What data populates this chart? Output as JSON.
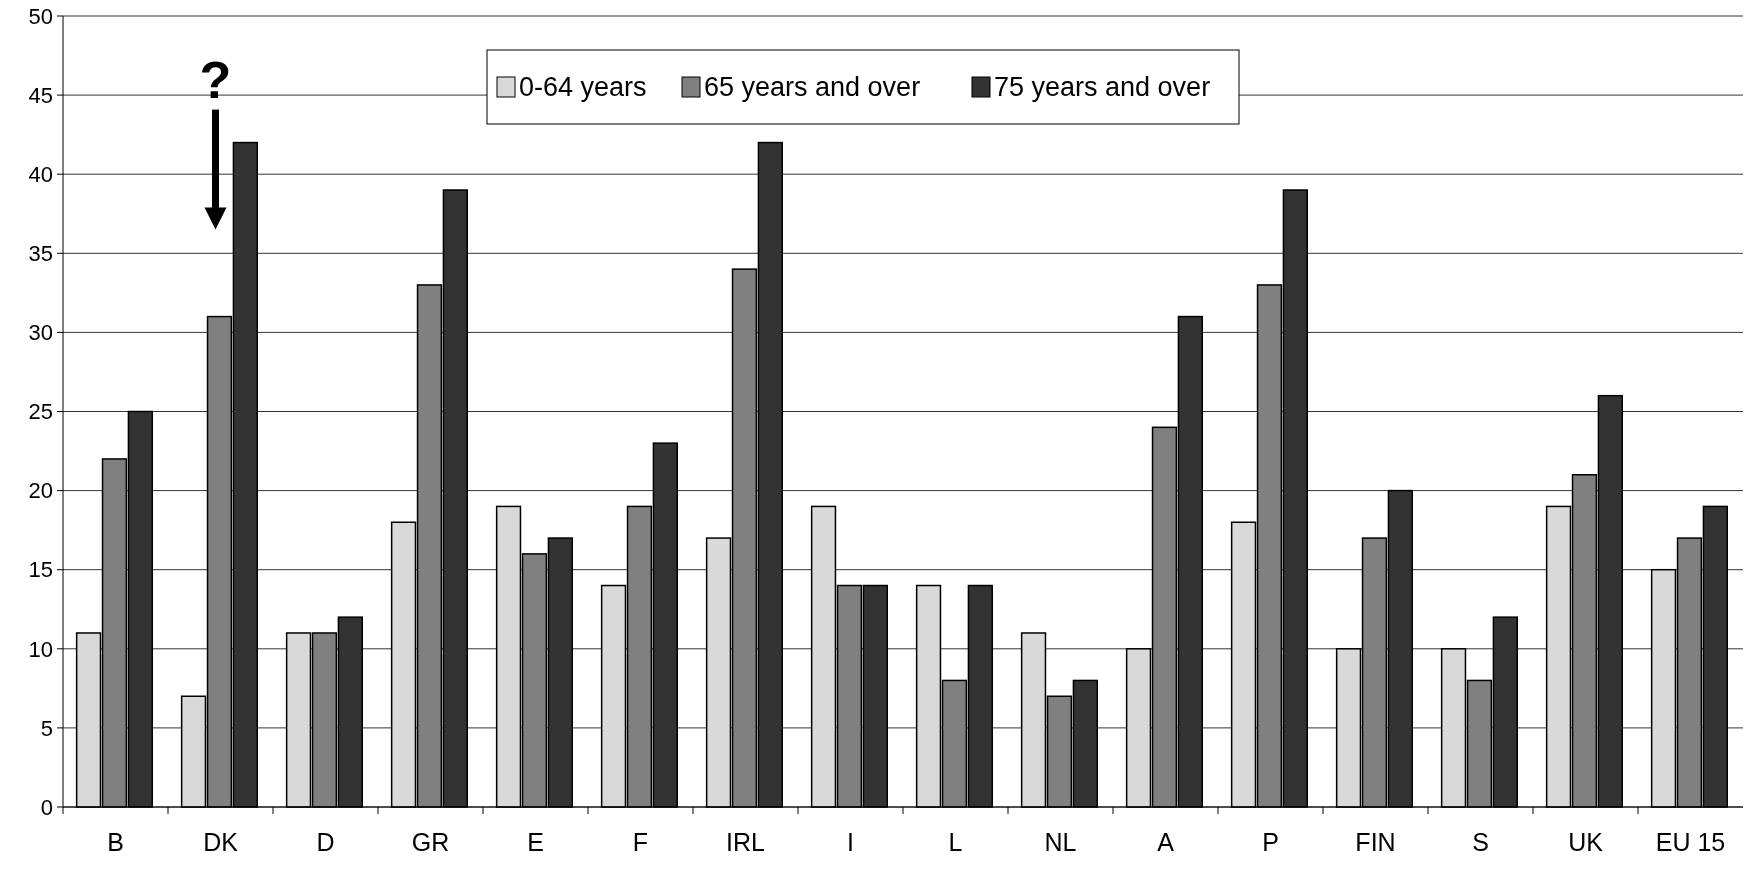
{
  "chart_data": {
    "type": "bar",
    "categories": [
      "B",
      "DK",
      "D",
      "GR",
      "E",
      "F",
      "IRL",
      "I",
      "L",
      "NL",
      "A",
      "P",
      "FIN",
      "S",
      "UK",
      "EU 15"
    ],
    "series": [
      {
        "name": "0-64 years",
        "color": "#d9d9d9",
        "values": [
          11,
          7,
          11,
          18,
          19,
          14,
          17,
          19,
          14,
          11,
          10,
          18,
          10,
          10,
          19,
          15
        ]
      },
      {
        "name": "65 years and over",
        "color": "#808080",
        "values": [
          22,
          31,
          11,
          33,
          16,
          19,
          34,
          14,
          8,
          7,
          24,
          33,
          17,
          8,
          21,
          17
        ]
      },
      {
        "name": "75 years and over",
        "color": "#333333",
        "values": [
          25,
          42,
          12,
          39,
          17,
          23,
          42,
          14,
          14,
          8,
          31,
          39,
          20,
          12,
          26,
          19
        ]
      }
    ],
    "ylim": [
      0,
      50
    ],
    "yticks": [
      0,
      5,
      10,
      15,
      20,
      25,
      30,
      35,
      40,
      45,
      50
    ],
    "grid": "y",
    "legend": "top",
    "annotations": [
      "?"
    ]
  }
}
